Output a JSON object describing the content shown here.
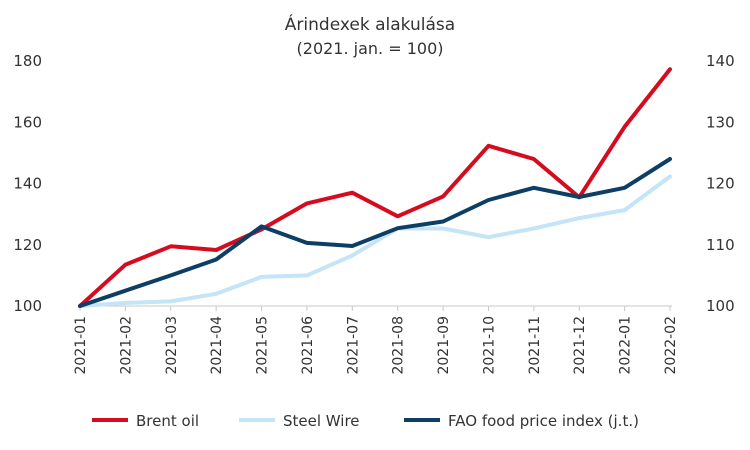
{
  "chart_data": {
    "type": "line",
    "title": "Árindexek alakulása",
    "subtitle": "(2021. jan. = 100)",
    "categories": [
      "2021-01",
      "2021-02",
      "2021-03",
      "2021-04",
      "2021-05",
      "2021-06",
      "2021-07",
      "2021-08",
      "2021-09",
      "2021-10",
      "2021-11",
      "2021-12",
      "2022-01",
      "2022-02"
    ],
    "y_left": {
      "ylim": [
        100,
        180
      ],
      "ticks": [
        "100",
        "120",
        "140",
        "160",
        "180"
      ]
    },
    "y_right": {
      "ylim": [
        100,
        140
      ],
      "ticks": [
        "100",
        "110",
        "120",
        "130",
        "140"
      ]
    },
    "grid": false,
    "legend_position": "bottom",
    "series": [
      {
        "name": "Brent oil",
        "axis": "left",
        "color": "#d50b1f",
        "values": [
          100,
          113.5,
          119.5,
          118.3,
          125.0,
          133.5,
          137.0,
          129.3,
          135.8,
          152.3,
          148.0,
          135.5,
          158.5,
          177.3
        ]
      },
      {
        "name": "Steel Wire",
        "axis": "left",
        "color": "#c4e4f7",
        "values": [
          100,
          101.0,
          101.5,
          104.0,
          109.5,
          110.0,
          116.5,
          125.3,
          125.3,
          122.5,
          125.3,
          128.7,
          131.3,
          142.3
        ]
      },
      {
        "name": "FAO food price index (j.t.)",
        "axis": "right",
        "color": "#0d3e66",
        "values": [
          100,
          102.5,
          105.0,
          107.6,
          113.0,
          110.3,
          109.8,
          112.7,
          113.8,
          117.3,
          119.3,
          117.8,
          119.3,
          124.0
        ]
      }
    ]
  }
}
